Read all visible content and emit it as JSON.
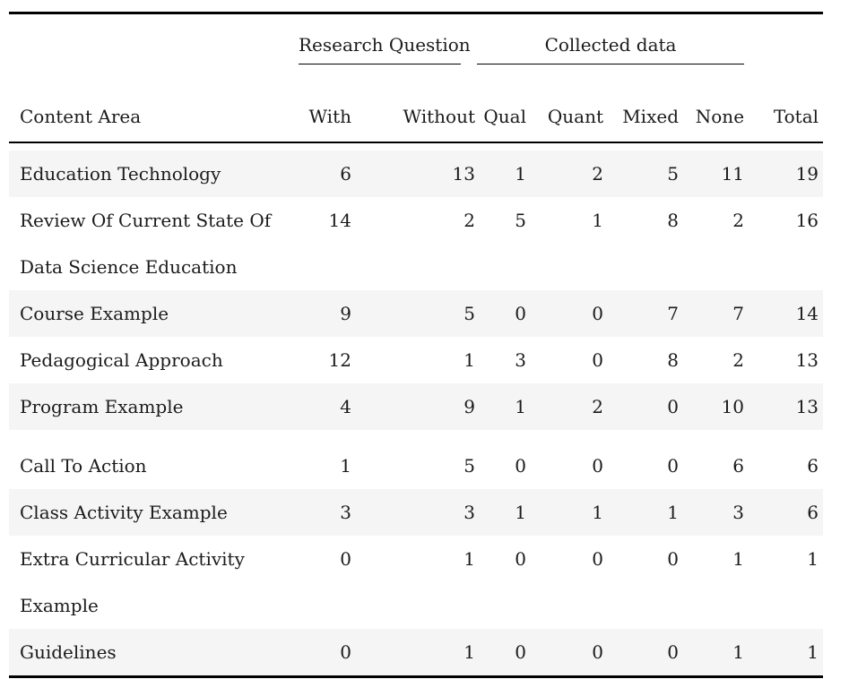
{
  "table": {
    "spanners": [
      {
        "label": "Research Question",
        "covers": [
          "With",
          "Without"
        ]
      },
      {
        "label": "Collected data",
        "covers": [
          "Qual",
          "Quant",
          "Mixed",
          "None"
        ]
      }
    ],
    "columns": [
      "Content Area",
      "With",
      "Without",
      "Qual",
      "Quant",
      "Mixed",
      "None",
      "Total"
    ],
    "rows": [
      {
        "label": "Education Technology",
        "label_lines": [
          "Education Technology"
        ],
        "values": [
          6,
          13,
          1,
          2,
          5,
          11,
          19
        ],
        "striped": true
      },
      {
        "label": "Review Of Current State Of Data Science Education",
        "label_lines": [
          "Review Of Current State Of",
          "Data Science Education"
        ],
        "values": [
          14,
          2,
          5,
          1,
          8,
          2,
          16
        ],
        "striped": false
      },
      {
        "label": "Course Example",
        "label_lines": [
          "Course Example"
        ],
        "values": [
          9,
          5,
          0,
          0,
          7,
          7,
          14
        ],
        "striped": true
      },
      {
        "label": "Pedagogical Approach",
        "label_lines": [
          "Pedagogical Approach"
        ],
        "values": [
          12,
          1,
          3,
          0,
          8,
          2,
          13
        ],
        "striped": false
      },
      {
        "label": "Program Example",
        "label_lines": [
          "Program Example"
        ],
        "values": [
          4,
          9,
          1,
          2,
          0,
          10,
          13
        ],
        "striped": true,
        "gap_after": true
      },
      {
        "label": "Call To Action",
        "label_lines": [
          "Call To Action"
        ],
        "values": [
          1,
          5,
          0,
          0,
          0,
          6,
          6
        ],
        "striped": false
      },
      {
        "label": "Class Activity Example",
        "label_lines": [
          "Class Activity Example"
        ],
        "values": [
          3,
          3,
          1,
          1,
          1,
          3,
          6
        ],
        "striped": true
      },
      {
        "label": "Extra Curricular Activity Example",
        "label_lines": [
          "Extra Curricular Activity",
          "Example"
        ],
        "values": [
          0,
          1,
          0,
          0,
          0,
          1,
          1
        ],
        "striped": false
      },
      {
        "label": "Guidelines",
        "label_lines": [
          "Guidelines"
        ],
        "values": [
          0,
          1,
          0,
          0,
          0,
          1,
          1
        ],
        "striped": true
      }
    ],
    "colors": {
      "stripe": "#f5f5f5",
      "rule": "#000000",
      "text": "#1b1b1b",
      "background": "#ffffff"
    }
  }
}
